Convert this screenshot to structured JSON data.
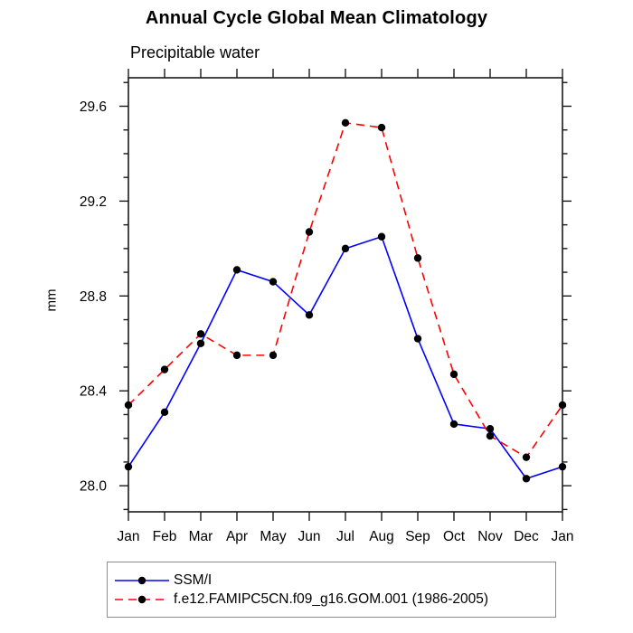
{
  "chart_data": {
    "type": "line",
    "title": "Annual Cycle Global Mean Climatology",
    "subtitle": "Precipitable water",
    "xlabel": "",
    "ylabel": "mm",
    "categories": [
      "Jan",
      "Feb",
      "Mar",
      "Apr",
      "May",
      "Jun",
      "Jul",
      "Aug",
      "Sep",
      "Oct",
      "Nov",
      "Dec",
      "Jan"
    ],
    "series": [
      {
        "name": "SSM/I",
        "color": "#0000ff",
        "line_style": "solid",
        "marker": "filled-circle",
        "marker_color": "#000000",
        "values": [
          28.08,
          28.31,
          28.6,
          28.91,
          28.86,
          28.72,
          29.0,
          29.05,
          28.62,
          28.26,
          28.24,
          28.03,
          28.08
        ]
      },
      {
        "name": "f.e12.FAMIPC5CN.f09_g16.GOM.001 (1986-2005)",
        "color": "#ff0000",
        "line_style": "dashed",
        "marker": "filled-circle",
        "marker_color": "#000000",
        "values": [
          28.34,
          28.49,
          28.64,
          28.55,
          28.55,
          29.07,
          29.53,
          29.51,
          28.96,
          28.47,
          28.21,
          28.12,
          28.34
        ]
      }
    ],
    "ylim": [
      27.89,
      29.72
    ],
    "yticks_major": [
      28.0,
      28.4,
      28.8,
      29.2,
      29.6
    ],
    "ytick_labels": [
      "28.0",
      "28.4",
      "28.8",
      "29.2",
      "29.6"
    ],
    "ytick_minor_step": 0.1,
    "ytick_minor_range": [
      27.9,
      29.7
    ],
    "grid": false,
    "legend_position": "bottom",
    "axis_color": "#1a1a1a"
  }
}
